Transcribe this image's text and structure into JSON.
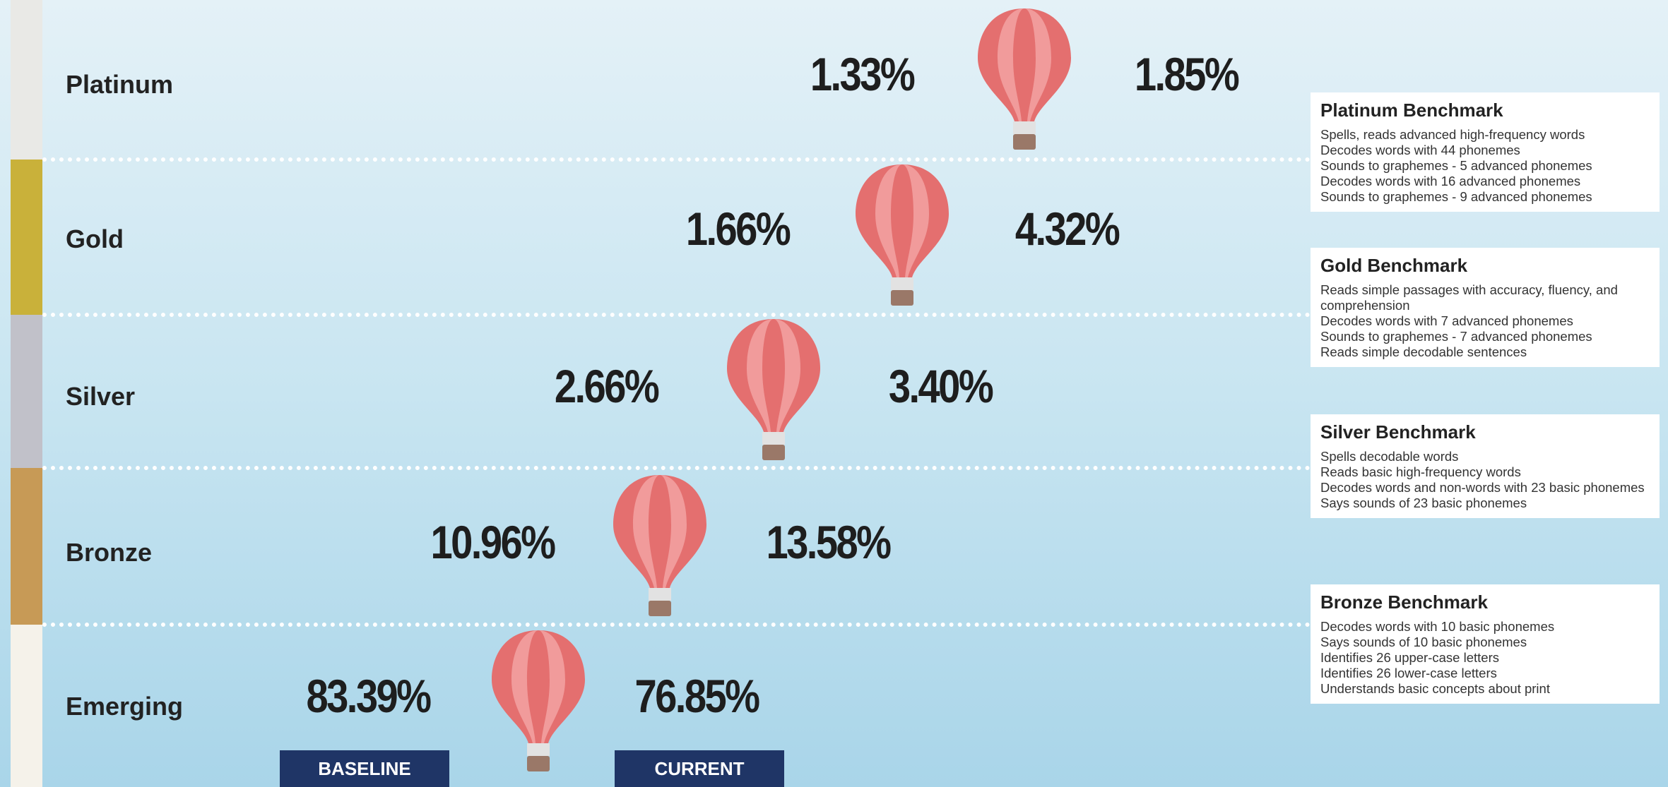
{
  "levels": [
    {
      "name": "Platinum",
      "baseline": "1.33%",
      "current": "1.85%"
    },
    {
      "name": "Gold",
      "baseline": "1.66%",
      "current": "4.32%"
    },
    {
      "name": "Silver",
      "baseline": "2.66%",
      "current": "3.40%"
    },
    {
      "name": "Bronze",
      "baseline": "10.96%",
      "current": "13.58%"
    },
    {
      "name": "Emerging",
      "baseline": "83.39%",
      "current": "76.85%"
    }
  ],
  "benchmarks": [
    {
      "title": "Platinum Benchmark",
      "lines": [
        "Spells, reads advanced high-frequency words",
        "Decodes words with 44 phonemes",
        "Sounds to graphemes - 5 advanced phonemes",
        "Decodes words with 16 advanced phonemes",
        "Sounds to graphemes - 9 advanced phonemes"
      ]
    },
    {
      "title": "Gold Benchmark",
      "lines": [
        "Reads simple passages with accuracy, fluency, and comprehension",
        "Decodes words with 7 advanced phonemes",
        "Sounds to graphemes - 7 advanced phonemes",
        "Reads simple decodable sentences"
      ]
    },
    {
      "title": "Silver Benchmark",
      "lines": [
        "Spells decodable words",
        "Reads basic high-frequency words",
        "Decodes words and non-words with 23 basic phonemes",
        "Says sounds of 23 basic phonemes"
      ]
    },
    {
      "title": "Bronze Benchmark",
      "lines": [
        "Decodes words with 10 basic phonemes",
        "Says sounds of 10 basic phonemes",
        "Identifies 26 upper-case letters",
        "Identifies 26 lower-case letters",
        "Understands basic concepts about print"
      ]
    }
  ],
  "footer": {
    "baseline": "BASELINE",
    "current": "CURRENT"
  }
}
